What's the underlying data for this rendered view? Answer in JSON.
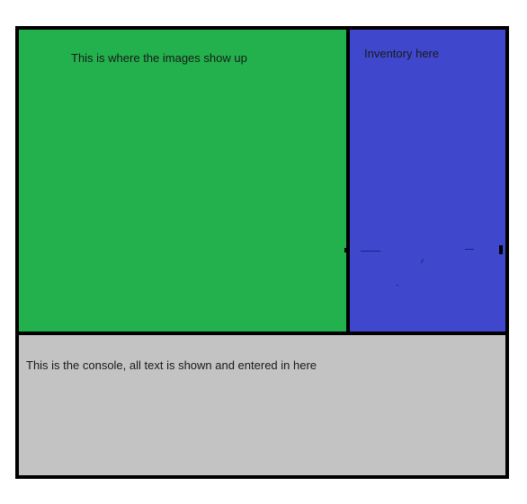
{
  "layout_mockup": {
    "image_area": {
      "label": "This is where the images show up",
      "color": "#22b14c"
    },
    "inventory_area": {
      "label": "Inventory here",
      "color": "#3f48cc"
    },
    "console_area": {
      "label": "This is the console, all text is shown and entered in here",
      "color": "#c3c3c3"
    },
    "border_color": "#000000"
  }
}
